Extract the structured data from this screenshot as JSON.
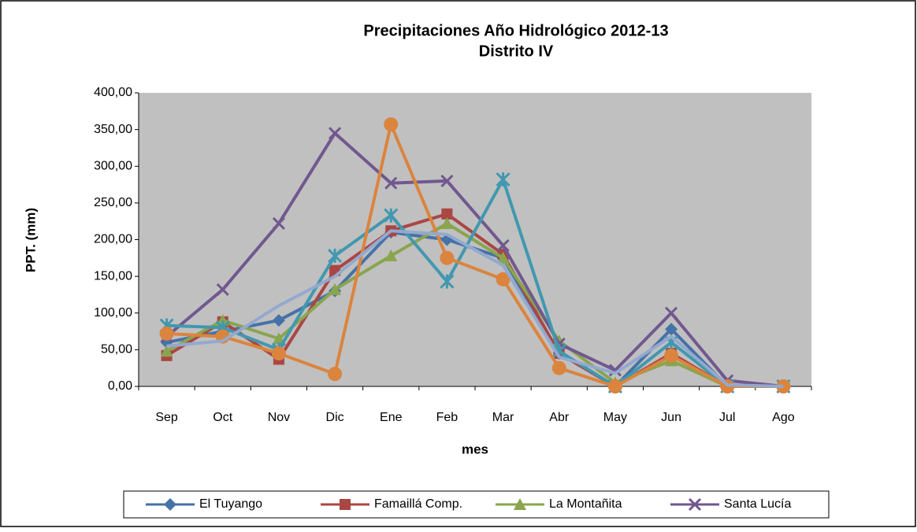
{
  "chart_data": {
    "type": "line",
    "title": [
      "Precipitaciones Año Hidrológico 2012-13",
      "Distrito IV"
    ],
    "x_label": "mes",
    "y_label": "PPT. (mm)",
    "categories": [
      "Sep",
      "Oct",
      "Nov",
      "Dic",
      "Ene",
      "Feb",
      "Mar",
      "Abr",
      "May",
      "Jun",
      "Jul",
      "Ago"
    ],
    "ylim": [
      0,
      400
    ],
    "yticks": [
      {
        "value": 0,
        "label": "0,00"
      },
      {
        "value": 50,
        "label": "50,00"
      },
      {
        "value": 100,
        "label": "100,00"
      },
      {
        "value": 150,
        "label": "150,00"
      },
      {
        "value": 200,
        "label": "200,00"
      },
      {
        "value": 250,
        "label": "250,00"
      },
      {
        "value": 300,
        "label": "300,00"
      },
      {
        "value": 350,
        "label": "350,00"
      },
      {
        "value": 400,
        "label": "400,00"
      }
    ],
    "plot_background": "#c0c0c0",
    "legend": "bottom",
    "series": [
      {
        "name": "El Tuyango",
        "color": "#4572a7",
        "marker": "diamond",
        "values": [
          60,
          75,
          90,
          130,
          210,
          200,
          175,
          45,
          0,
          78,
          0,
          0
        ]
      },
      {
        "name": "Famaillá Comp.",
        "color": "#aa4643",
        "marker": "square",
        "values": [
          42,
          88,
          37,
          158,
          212,
          235,
          180,
          45,
          0,
          45,
          0,
          0
        ]
      },
      {
        "name": "La Montañita",
        "color": "#89a54e",
        "marker": "triangle",
        "values": [
          48,
          90,
          65,
          132,
          178,
          222,
          175,
          62,
          5,
          35,
          0,
          0
        ]
      },
      {
        "name": "Santa Lucía",
        "color": "#71588f",
        "marker": "x",
        "values": [
          68,
          132,
          222,
          345,
          277,
          280,
          192,
          58,
          22,
          100,
          8,
          0
        ]
      },
      {
        "color": "#4198af",
        "marker": "star",
        "values": [
          83,
          80,
          50,
          178,
          233,
          143,
          282,
          48,
          0,
          60,
          0,
          0
        ]
      },
      {
        "color": "#db843d",
        "marker": "circle",
        "values": [
          72,
          68,
          45,
          17,
          357,
          175,
          146,
          25,
          0,
          42,
          0,
          0
        ]
      },
      {
        "color": "#93a9cf",
        "marker": "none",
        "values": [
          55,
          62,
          110,
          150,
          212,
          207,
          165,
          40,
          18,
          68,
          2,
          0
        ]
      }
    ]
  }
}
